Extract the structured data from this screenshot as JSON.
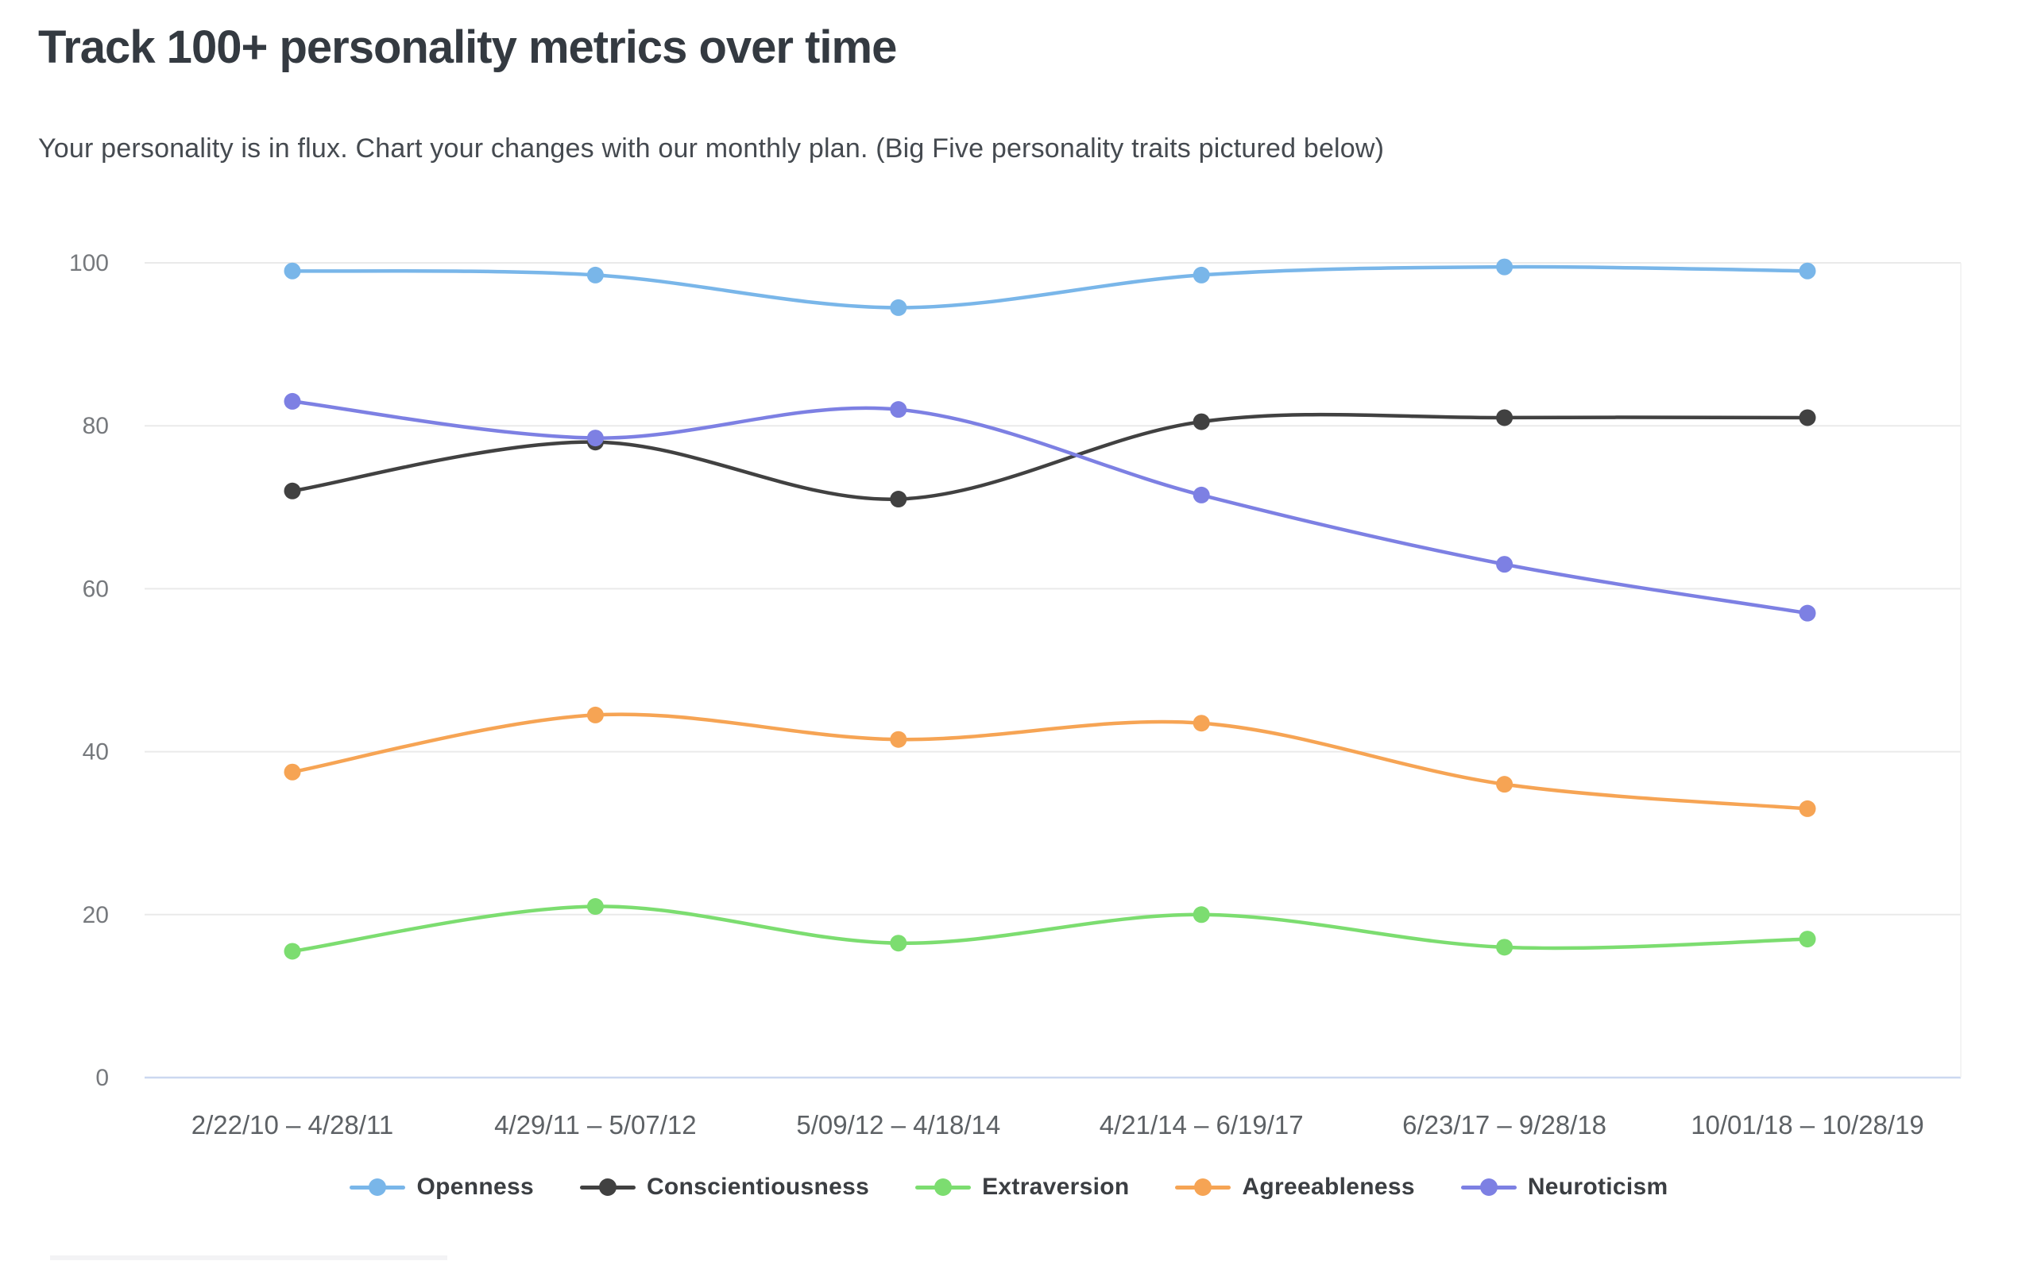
{
  "page": {
    "title": "Track 100+ personality metrics over time",
    "subtitle": "Your personality is in flux. Chart your changes with our monthly plan. (Big Five personality traits pictured below)"
  },
  "colors": {
    "background": "#ffffff",
    "title_text": "#343a41",
    "subtitle_text": "#454a50",
    "gridline": "#eaeaea",
    "zero_line": "#ccd8f0",
    "y_tick_text": "#76797d",
    "x_tick_text": "#5d6165",
    "legend_text": "#3b3e42"
  },
  "chart_data": {
    "type": "line",
    "title": "",
    "xlabel": "",
    "ylabel": "",
    "ylim": [
      0,
      100
    ],
    "yticks": [
      0,
      20,
      40,
      60,
      80,
      100
    ],
    "grid": true,
    "legend_position": "bottom",
    "curve": "smooth",
    "categories": [
      "2/22/10 – 4/28/11",
      "4/29/11 – 5/07/12",
      "5/09/12 – 4/18/14",
      "4/21/14 – 6/19/17",
      "6/23/17 – 9/28/18",
      "10/01/18 – 10/28/19"
    ],
    "series": [
      {
        "name": "Openness",
        "color": "#79b6e9",
        "values": [
          99,
          98.5,
          94.5,
          98.5,
          99.5,
          99
        ]
      },
      {
        "name": "Conscientiousness",
        "color": "#414141",
        "values": [
          72,
          78,
          71,
          80.5,
          81,
          81
        ]
      },
      {
        "name": "Extraversion",
        "color": "#7cdd70",
        "values": [
          15.5,
          21,
          16.5,
          20,
          16,
          17
        ]
      },
      {
        "name": "Agreeableness",
        "color": "#f6a454",
        "values": [
          37.5,
          44.5,
          41.5,
          43.5,
          36,
          33
        ]
      },
      {
        "name": "Neuroticism",
        "color": "#7d80e3",
        "values": [
          83,
          78.5,
          82,
          71.5,
          63,
          57
        ]
      }
    ]
  }
}
